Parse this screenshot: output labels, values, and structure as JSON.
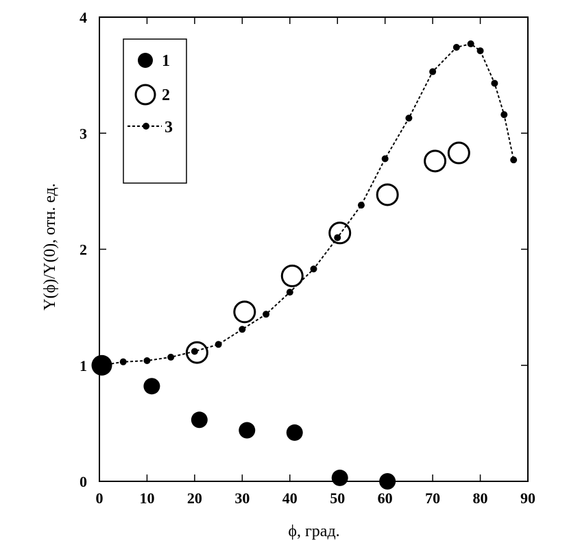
{
  "chart_data": {
    "type": "scatter",
    "xlabel": "ϕ, град.",
    "ylabel": "Y(ϕ)/Y(0), отн. ед.",
    "xlim": [
      0,
      90
    ],
    "ylim": [
      0,
      4
    ],
    "xticks": [
      "0",
      "10",
      "20",
      "30",
      "40",
      "50",
      "60",
      "70",
      "80",
      "90"
    ],
    "yticks": [
      "0",
      "1",
      "2",
      "3",
      "4"
    ],
    "legend_position": "top-left",
    "series": [
      {
        "name": "1",
        "marker": "filled-circle-large",
        "x": [
          0.5,
          11,
          21,
          31,
          41,
          50.5,
          60.5
        ],
        "y": [
          1.0,
          0.82,
          0.53,
          0.44,
          0.42,
          0.03,
          0.0
        ]
      },
      {
        "name": "2",
        "marker": "open-circle-large",
        "x": [
          20.5,
          30.5,
          40.5,
          50.5,
          60.5,
          70.5,
          75.5
        ],
        "y": [
          1.11,
          1.46,
          1.77,
          2.14,
          2.47,
          2.76,
          2.83
        ]
      },
      {
        "name": "3",
        "marker": "small-dot-dashed-line",
        "x": [
          0.5,
          5,
          10,
          15,
          20,
          25,
          30,
          35,
          40,
          45,
          50,
          55,
          60,
          65,
          70,
          75,
          78,
          80,
          83,
          85,
          87
        ],
        "y": [
          1.0,
          1.03,
          1.04,
          1.07,
          1.12,
          1.18,
          1.31,
          1.44,
          1.63,
          1.83,
          2.1,
          2.38,
          2.78,
          3.13,
          3.53,
          3.74,
          3.77,
          3.71,
          3.43,
          3.16,
          2.77
        ]
      }
    ]
  }
}
